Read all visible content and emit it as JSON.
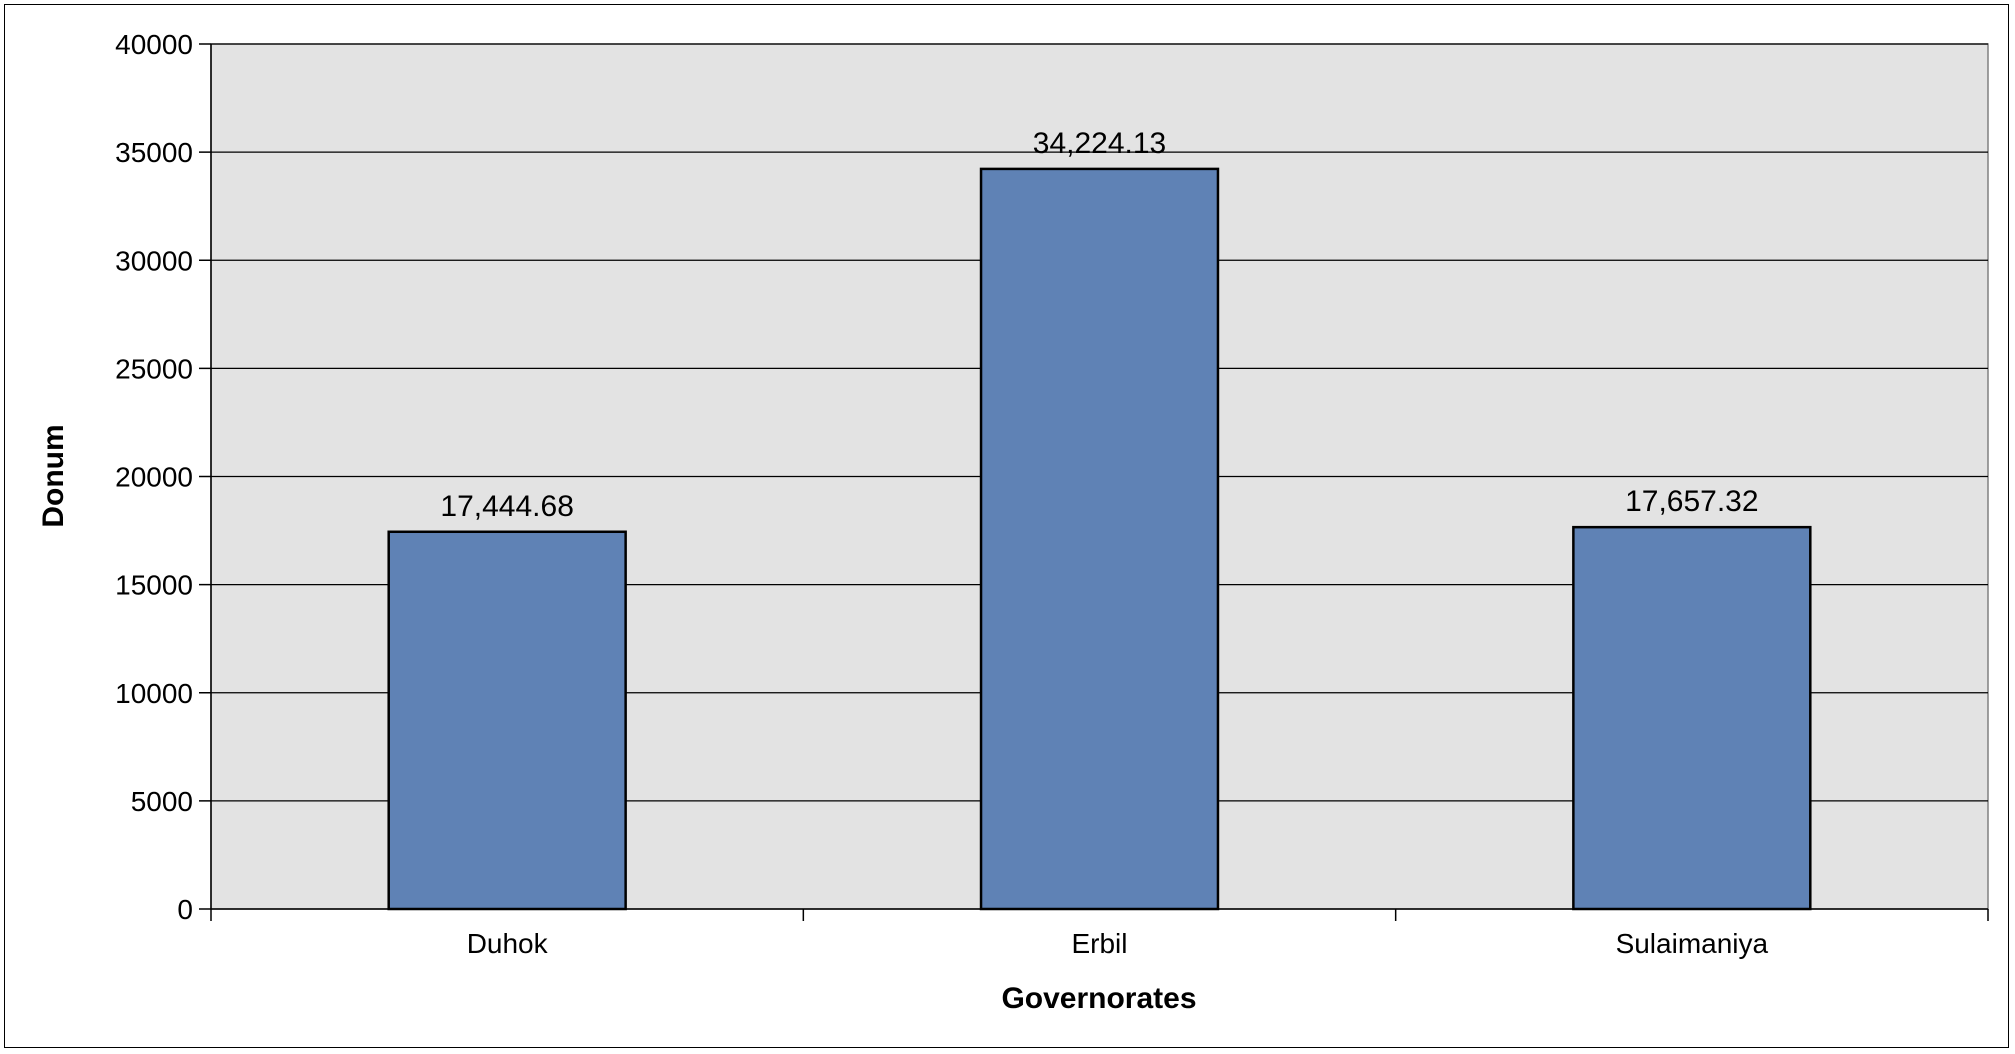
{
  "chart_data": {
    "type": "bar",
    "title": "",
    "xlabel": "Governorates",
    "ylabel": "Donum",
    "categories": [
      "Duhok",
      "Erbil",
      "Sulaimaniya"
    ],
    "values": [
      17444.68,
      34224.13,
      17657.32
    ],
    "data_labels": [
      "17,444.68",
      "34,224.13",
      "17,657.32"
    ],
    "ylim": [
      0,
      40000
    ],
    "yticks": [
      0,
      5000,
      10000,
      15000,
      20000,
      25000,
      30000,
      35000,
      40000
    ],
    "grid": true,
    "legend": "none",
    "colors": {
      "bar_fill": "#5f82b5",
      "bar_stroke": "#000000",
      "plot_background": "#e3e3e3",
      "gridline": "#000000"
    }
  }
}
